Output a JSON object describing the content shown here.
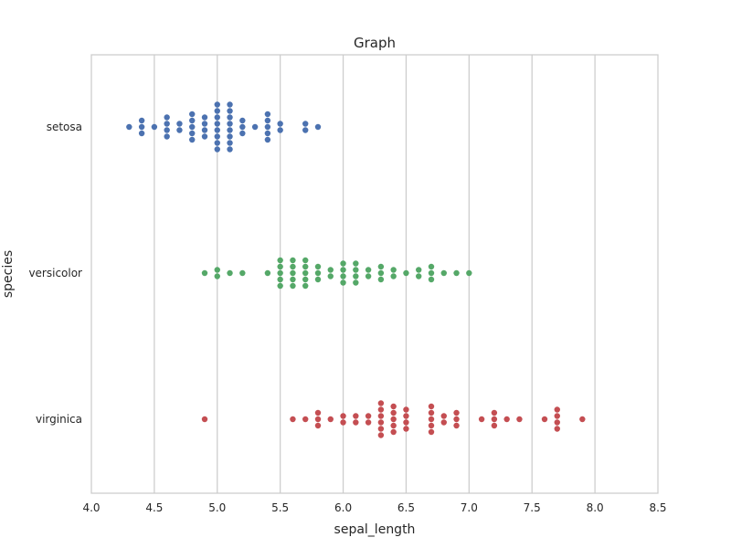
{
  "chart_data": {
    "type": "scatter",
    "subtype": "swarm",
    "title": "Graph",
    "xlabel": "sepal_length",
    "ylabel": "species",
    "xlim": [
      4.0,
      8.5
    ],
    "xticks": [
      "4.0",
      "4.5",
      "5.0",
      "5.5",
      "6.0",
      "6.5",
      "7.0",
      "7.5",
      "8.0",
      "8.5"
    ],
    "categories": [
      "setosa",
      "versicolor",
      "virginica"
    ],
    "grid": "vertical",
    "series": [
      {
        "category": "setosa",
        "color": "#4c72b0",
        "values": [
          4.3,
          4.4,
          4.4,
          4.4,
          4.5,
          4.6,
          4.6,
          4.6,
          4.6,
          4.7,
          4.7,
          4.8,
          4.8,
          4.8,
          4.8,
          4.8,
          4.9,
          4.9,
          4.9,
          4.9,
          5.0,
          5.0,
          5.0,
          5.0,
          5.0,
          5.0,
          5.0,
          5.0,
          5.1,
          5.1,
          5.1,
          5.1,
          5.1,
          5.1,
          5.1,
          5.1,
          5.2,
          5.2,
          5.2,
          5.3,
          5.4,
          5.4,
          5.4,
          5.4,
          5.4,
          5.5,
          5.5,
          5.7,
          5.7,
          5.8
        ]
      },
      {
        "category": "versicolor",
        "color": "#55a868",
        "values": [
          4.9,
          5.0,
          5.0,
          5.1,
          5.2,
          5.4,
          5.5,
          5.5,
          5.5,
          5.5,
          5.5,
          5.6,
          5.6,
          5.6,
          5.6,
          5.6,
          5.7,
          5.7,
          5.7,
          5.7,
          5.7,
          5.8,
          5.8,
          5.8,
          5.9,
          5.9,
          6.0,
          6.0,
          6.0,
          6.0,
          6.1,
          6.1,
          6.1,
          6.1,
          6.2,
          6.2,
          6.3,
          6.3,
          6.3,
          6.4,
          6.4,
          6.5,
          6.6,
          6.6,
          6.7,
          6.7,
          6.7,
          6.8,
          6.9,
          7.0
        ]
      },
      {
        "category": "virginica",
        "color": "#c44e52",
        "values": [
          4.9,
          5.6,
          5.7,
          5.8,
          5.8,
          5.8,
          5.9,
          6.0,
          6.0,
          6.1,
          6.1,
          6.2,
          6.2,
          6.3,
          6.3,
          6.3,
          6.3,
          6.3,
          6.3,
          6.4,
          6.4,
          6.4,
          6.4,
          6.4,
          6.5,
          6.5,
          6.5,
          6.5,
          6.7,
          6.7,
          6.7,
          6.7,
          6.7,
          6.8,
          6.8,
          6.9,
          6.9,
          6.9,
          7.1,
          7.2,
          7.2,
          7.2,
          7.3,
          7.4,
          7.6,
          7.7,
          7.7,
          7.7,
          7.7,
          7.9
        ]
      }
    ]
  }
}
